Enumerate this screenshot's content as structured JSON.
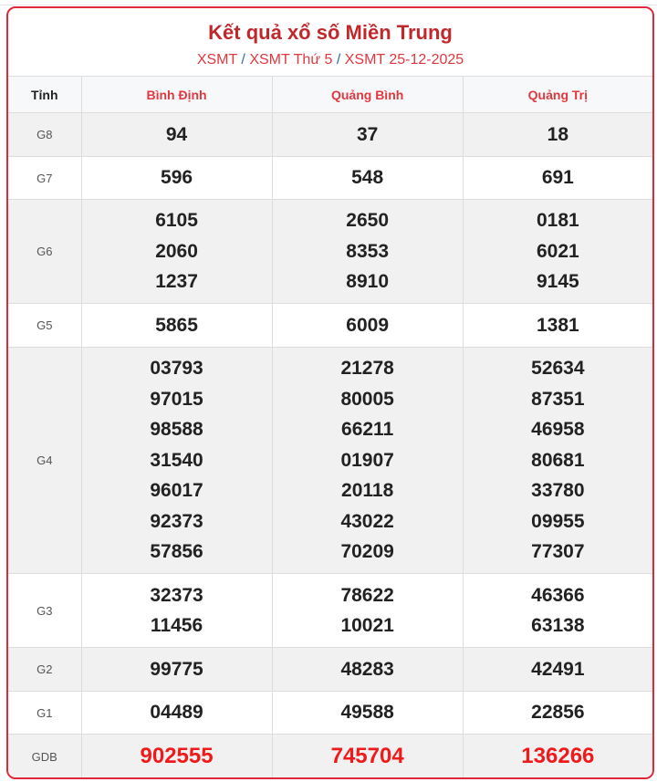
{
  "title": "Kết quả xổ số Miền Trung",
  "breadcrumb": [
    "XSMT",
    "XSMT Thứ 5",
    "XSMT 25-12-2025"
  ],
  "breadcrumb_sep": "/",
  "header": {
    "label": "Tỉnh",
    "provinces": [
      "Bình Định",
      "Quảng Bình",
      "Quảng Trị"
    ]
  },
  "colors": {
    "accent": "#e0283a",
    "special": "#f01a1a"
  },
  "rows": [
    {
      "label": "G8",
      "values": [
        [
          "94"
        ],
        [
          "37"
        ],
        [
          "18"
        ]
      ]
    },
    {
      "label": "G7",
      "values": [
        [
          "596"
        ],
        [
          "548"
        ],
        [
          "691"
        ]
      ]
    },
    {
      "label": "G6",
      "values": [
        [
          "6105",
          "2060",
          "1237"
        ],
        [
          "2650",
          "8353",
          "8910"
        ],
        [
          "0181",
          "6021",
          "9145"
        ]
      ]
    },
    {
      "label": "G5",
      "values": [
        [
          "5865"
        ],
        [
          "6009"
        ],
        [
          "1381"
        ]
      ]
    },
    {
      "label": "G4",
      "values": [
        [
          "03793",
          "97015",
          "98588",
          "31540",
          "96017",
          "92373",
          "57856"
        ],
        [
          "21278",
          "80005",
          "66211",
          "01907",
          "20118",
          "43022",
          "70209"
        ],
        [
          "52634",
          "87351",
          "46958",
          "80681",
          "33780",
          "09955",
          "77307"
        ]
      ]
    },
    {
      "label": "G3",
      "values": [
        [
          "32373",
          "11456"
        ],
        [
          "78622",
          "10021"
        ],
        [
          "46366",
          "63138"
        ]
      ]
    },
    {
      "label": "G2",
      "values": [
        [
          "99775"
        ],
        [
          "48283"
        ],
        [
          "42491"
        ]
      ]
    },
    {
      "label": "G1",
      "values": [
        [
          "04489"
        ],
        [
          "49588"
        ],
        [
          "22856"
        ]
      ]
    },
    {
      "label": "GDB",
      "values": [
        [
          "902555"
        ],
        [
          "745704"
        ],
        [
          "136266"
        ]
      ]
    }
  ]
}
